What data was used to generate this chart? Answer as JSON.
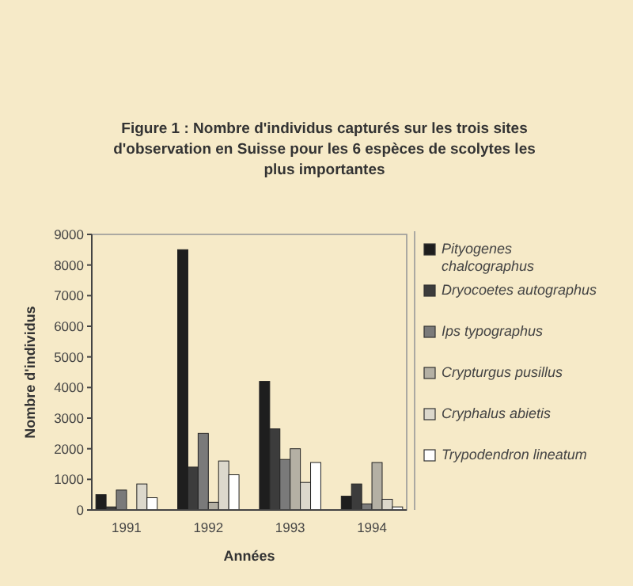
{
  "chart_data": {
    "type": "bar",
    "title": "Figure 1 : Nombre d'individus capturés sur les trois sites d'observation en Suisse pour les 6 espèces de scolytes les plus importantes",
    "xlabel": "Années",
    "ylabel": "Nombre d'individus",
    "categories": [
      "1991",
      "1992",
      "1993",
      "1994"
    ],
    "series": [
      {
        "name": "Pityogenes chalcographus",
        "color": "#1e1e1e",
        "values": [
          500,
          8500,
          4200,
          450
        ]
      },
      {
        "name": "Dryocoetes autographus",
        "color": "#3c3c3c",
        "values": [
          100,
          1400,
          2650,
          850
        ]
      },
      {
        "name": "Ips typographus",
        "color": "#7a7a7a",
        "values": [
          650,
          2500,
          1650,
          200
        ]
      },
      {
        "name": "Crypturgus pusillus",
        "color": "#b4b0a4",
        "values": [
          0,
          250,
          2000,
          1550
        ]
      },
      {
        "name": "Cryphalus abietis",
        "color": "#dcd8cc",
        "values": [
          850,
          1600,
          900,
          350
        ]
      },
      {
        "name": "Trypodendron lineatum",
        "color": "#ffffff",
        "values": [
          400,
          1150,
          1550,
          100
        ]
      }
    ],
    "ylim": [
      0,
      9000
    ],
    "yticks": [
      0,
      1000,
      2000,
      3000,
      4000,
      5000,
      6000,
      7000,
      8000,
      9000
    ],
    "legend": "right"
  }
}
